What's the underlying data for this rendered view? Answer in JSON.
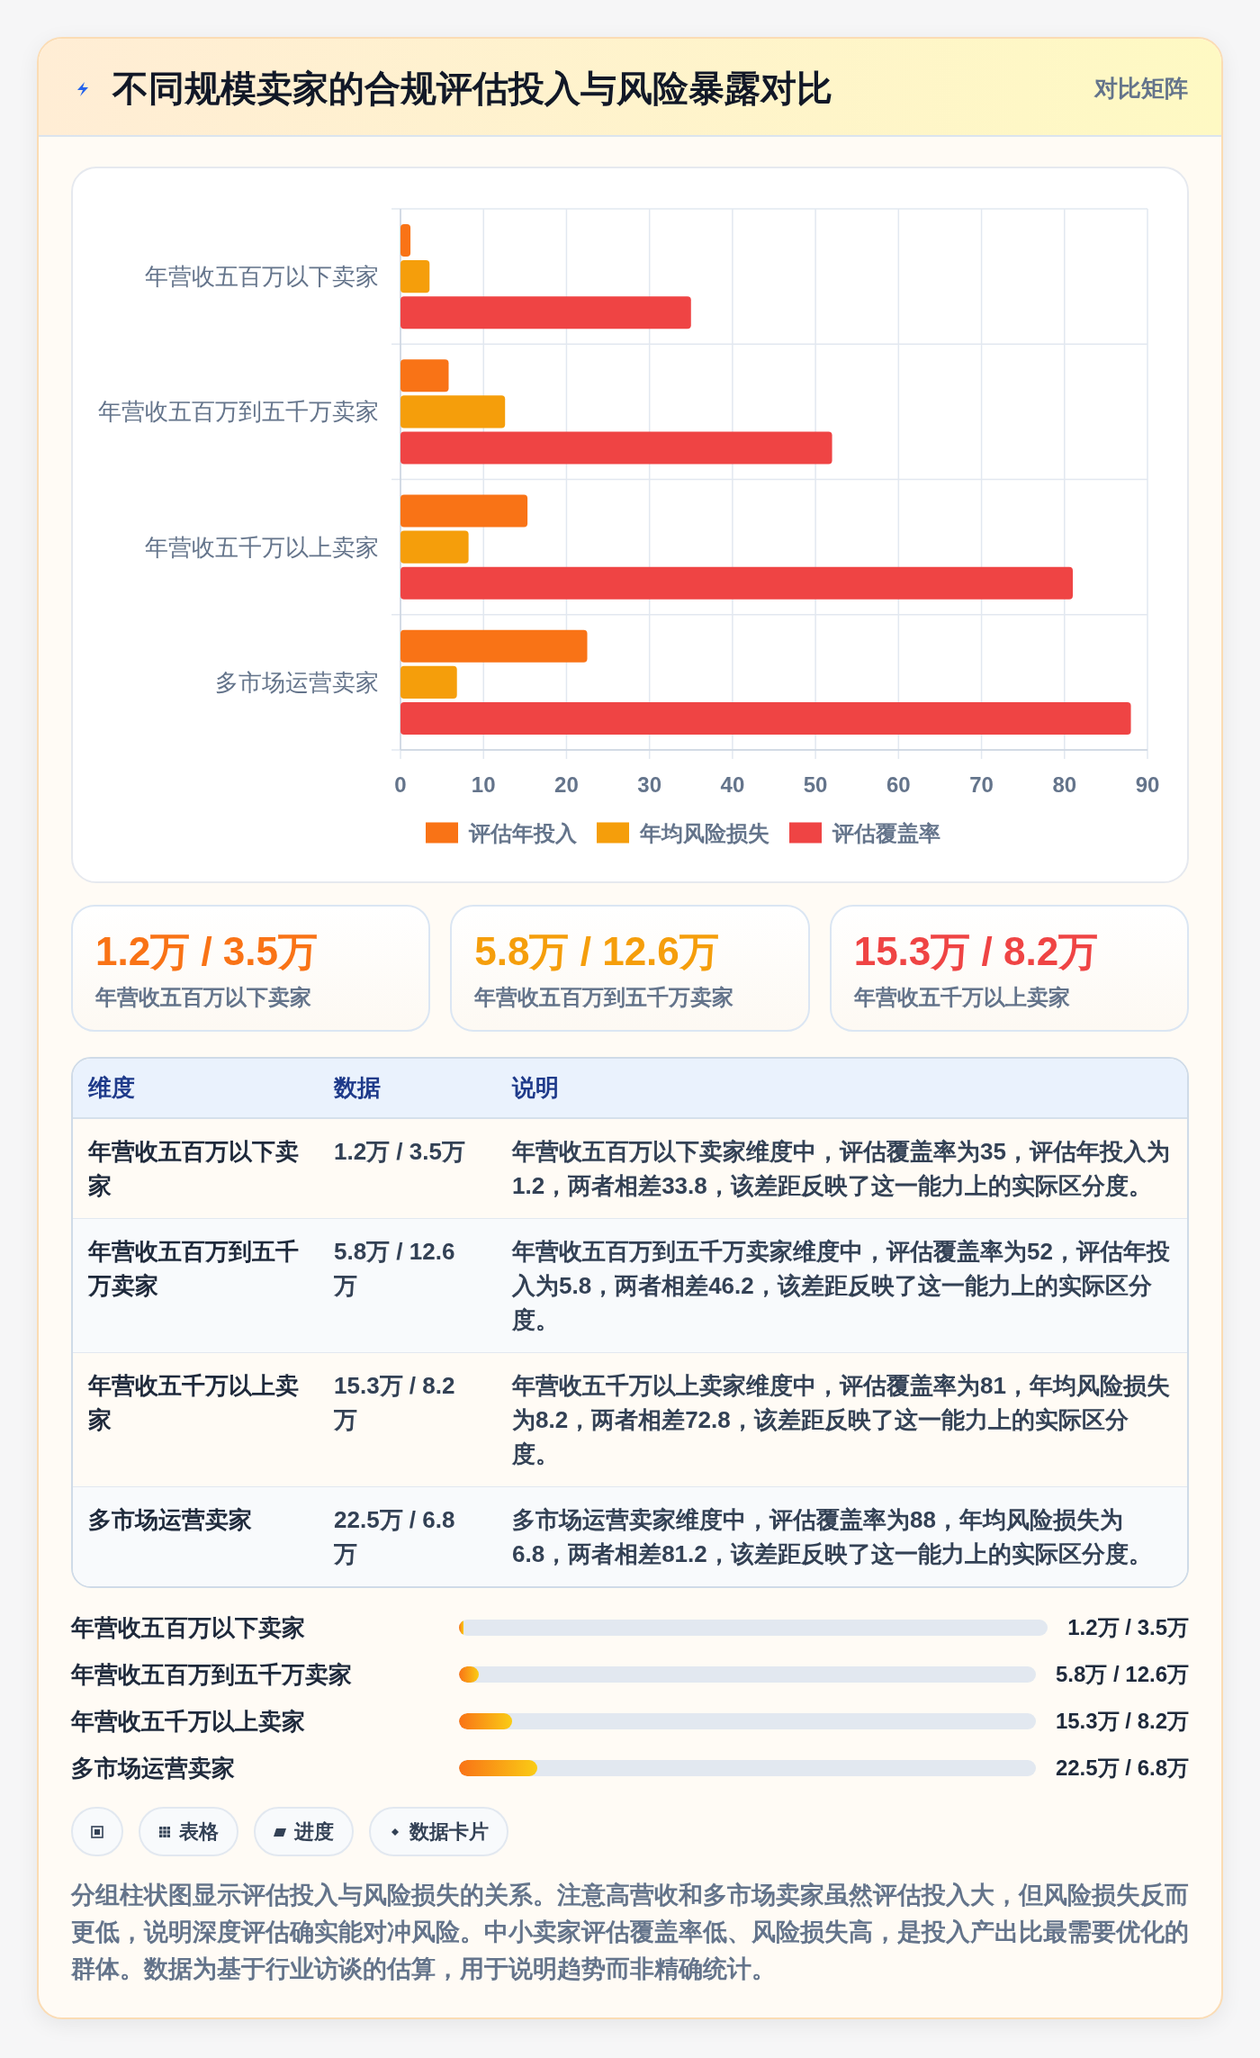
{
  "chart_data": [
    {
      "type": "bar",
      "title": "不同规模卖家的合规评估投入与风险暴露对比",
      "subtitle": "对比矩阵",
      "orientation": "horizontal",
      "categories": [
        "年营收五百万以下卖家",
        "年营收五百万到五千万卖家",
        "年营收五千万以上卖家",
        "多市场运营卖家"
      ],
      "series": [
        {
          "name": "评估年投入",
          "color": "#f97316",
          "values": [
            1.2,
            5.8,
            15.3,
            22.5
          ]
        },
        {
          "name": "年均风险损失",
          "color": "#f59e0b",
          "values": [
            3.5,
            12.6,
            8.2,
            6.8
          ]
        },
        {
          "name": "评估覆盖率",
          "color": "#ef4444",
          "values": [
            35,
            52,
            81,
            88
          ]
        }
      ],
      "xlim": [
        0,
        90
      ],
      "xticks": [
        0,
        10,
        20,
        30,
        40,
        50,
        60,
        70,
        80,
        90
      ],
      "grid": true,
      "legend": "bottom"
    },
    {
      "type": "other",
      "categories": [
        "年营收五百万以下卖家",
        "年营收五百万到五千万卖家",
        "年营收五千万以上卖家"
      ],
      "value_labels": [
        "1.2万 / 3.5万",
        "5.8万 / 12.6万",
        "15.3万 / 8.2万"
      ]
    },
    {
      "type": "other",
      "categories": [
        "维度",
        "数据",
        "说明"
      ],
      "y_categories": [
        "年营收五百万以下卖家",
        "年营收五百万到五千万卖家",
        "年营收五千万以上卖家",
        "多市场运营卖家"
      ],
      "cell_labels": [
        [
          "1.2万 / 3.5万",
          "年营收五百万以下卖家维度中，评估覆盖率为35，评估年投入为1.2，两者相差33.8，该差距反映了这一能力上的实际区分度。"
        ],
        [
          "5.8万 / 12.6万",
          "年营收五百万到五千万卖家维度中，评估覆盖率为52，评估年投入为5.8，两者相差46.2，该差距反映了这一能力上的实际区分度。"
        ],
        [
          "15.3万 / 8.2万",
          "年营收五千万以上卖家维度中，评估覆盖率为81，年均风险损失为8.2，两者相差72.8，该差距反映了这一能力上的实际区分度。"
        ],
        [
          "22.5万 / 6.8万",
          "多市场运营卖家维度中，评估覆盖率为88，年均风险损失为6.8，两者相差81.2，该差距反映了这一能力上的实际区分度。"
        ]
      ]
    },
    {
      "type": "bar",
      "orientation": "horizontal",
      "categories": [
        "年营收五百万以下卖家",
        "年营收五百万到五千万卖家",
        "年营收五千万以上卖家",
        "多市场运营卖家"
      ],
      "values": [
        1.2,
        5.8,
        15.3,
        22.5
      ],
      "value_labels": [
        "1.2万 / 3.5万",
        "5.8万 / 12.6万",
        "15.3万 / 8.2万",
        "22.5万 / 6.8万"
      ],
      "color": "#f97316"
    },
    {
      "type": "other",
      "categories": [
        null,
        "表格",
        "进度",
        "数据卡片"
      ],
      "annotations": [
        "分组柱状图显示评估投入与风险损失的关系。注意高营收和多市场卖家虽然评估投入大，但风险损失反而更低，说明深度评估确实能对冲风险。中小卖家评估覆盖率低、风险损失高，是投入产出比最需要优化的群体。数据为基于行业访谈的估算，用于说明趋势而非精确统计。"
      ]
    }
  ]
}
